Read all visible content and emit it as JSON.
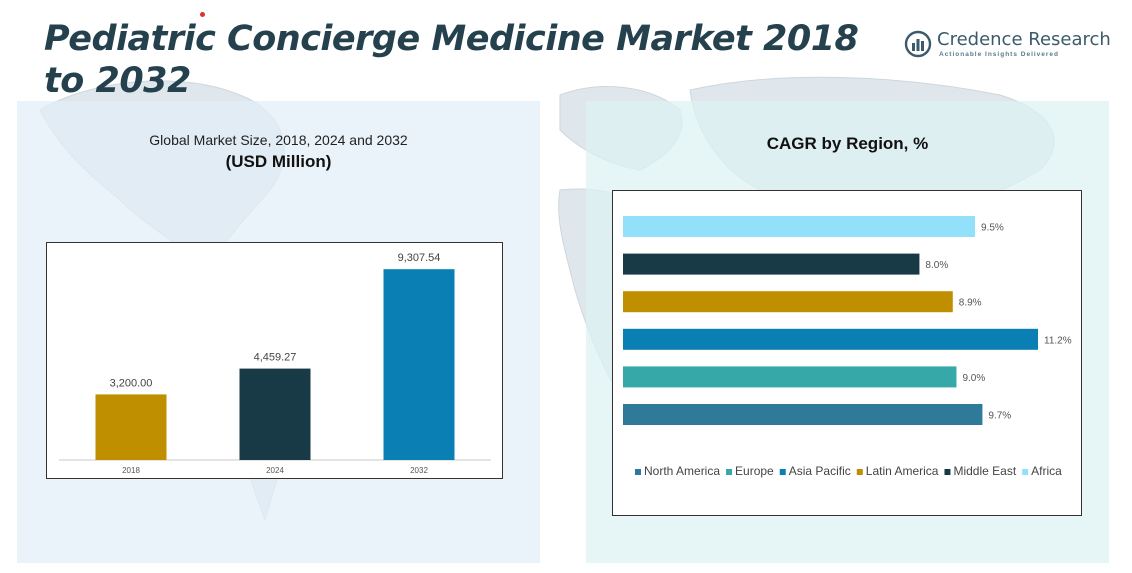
{
  "title": "Pediatric Concierge Medicine Market 2018 to 2032",
  "logo": {
    "name": "Credence Research",
    "tagline": "Actionable Insights Delivered"
  },
  "left_panel": {
    "title": "Global Market Size, 2018, 2024 and 2032",
    "subtitle": "(USD Million)"
  },
  "right_panel": {
    "title": "CAGR by Region, %"
  },
  "chart_data": [
    {
      "type": "bar",
      "title": "Global Market Size, 2018, 2024 and 2032",
      "ylabel": "(USD Million)",
      "categories": [
        "2018",
        "2024",
        "2032"
      ],
      "values": [
        3200.0,
        4459.27,
        9307.54
      ],
      "labels": [
        "3,200.00",
        "4,459.27",
        "9,307.54"
      ],
      "colors": [
        "#bf8f00",
        "#183a47",
        "#0a7fb3"
      ],
      "ylim": [
        0,
        10000
      ]
    },
    {
      "type": "bar",
      "orientation": "horizontal",
      "title": "CAGR by Region, %",
      "categories": [
        "Africa",
        "Middle East",
        "Latin America",
        "Asia Pacific",
        "Europe",
        "North America"
      ],
      "values": [
        9.5,
        8.0,
        8.9,
        11.2,
        9.0,
        9.7
      ],
      "labels": [
        "9.5%",
        "8.0%",
        "8.9%",
        "11.2%",
        "9.0%",
        "9.7%"
      ],
      "colors": [
        "#92e0fa",
        "#183a47",
        "#bf8f00",
        "#0a7fb3",
        "#37a8a8",
        "#2f7a99"
      ],
      "xlim": [
        0,
        11.2
      ],
      "legend": {
        "position": "bottom",
        "entries": [
          {
            "name": "North America",
            "color": "#2f7a99"
          },
          {
            "name": "Europe",
            "color": "#37a8a8"
          },
          {
            "name": "Asia Pacific",
            "color": "#0a7fb3"
          },
          {
            "name": "Latin America",
            "color": "#bf8f00"
          },
          {
            "name": "Middle East",
            "color": "#183a47"
          },
          {
            "name": "Africa",
            "color": "#92e0fa"
          }
        ]
      }
    }
  ]
}
